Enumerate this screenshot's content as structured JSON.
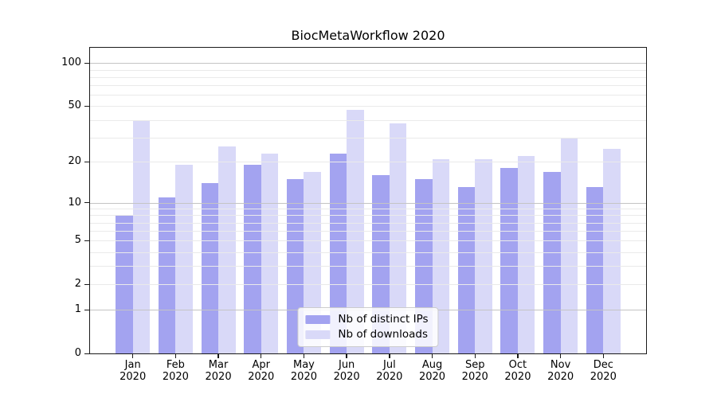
{
  "title": "BiocMetaWorkflow 2020",
  "chart_data": {
    "type": "bar",
    "title": "BiocMetaWorkflow 2020",
    "scale": "log10(1+y)",
    "grid": true,
    "legend_position": "lower center",
    "categories": [
      "Jan",
      "Feb",
      "Mar",
      "Apr",
      "May",
      "Jun",
      "Jul",
      "Aug",
      "Sep",
      "Oct",
      "Nov",
      "Dec"
    ],
    "category_year": "2020",
    "series": [
      {
        "name": "Nb of distinct IPs",
        "color": "#a3a3f0",
        "values": [
          8,
          11,
          14,
          19,
          15,
          23,
          16,
          15,
          13,
          18,
          17,
          13
        ]
      },
      {
        "name": "Nb of downloads",
        "color": "#d9d9f8",
        "values": [
          40,
          19,
          26,
          23,
          17,
          47,
          38,
          21,
          21,
          22,
          30,
          25
        ]
      }
    ],
    "y_ticks": [
      0,
      1,
      2,
      5,
      10,
      20,
      50,
      100
    ],
    "y_gridlines_major": [
      1,
      10,
      100
    ],
    "y_gridlines_minor": [
      2,
      3,
      4,
      5,
      6,
      7,
      8,
      9,
      20,
      30,
      40,
      50,
      60,
      70,
      80,
      90
    ],
    "ylim": [
      0,
      128
    ],
    "bar_slot_fraction": 0.4,
    "colors": {
      "grid_major": "#c4c4c4",
      "grid_minor": "#eaeaea",
      "spine": "#1a1a1a",
      "text": "#000000",
      "legend_border": "#cccccc"
    }
  }
}
